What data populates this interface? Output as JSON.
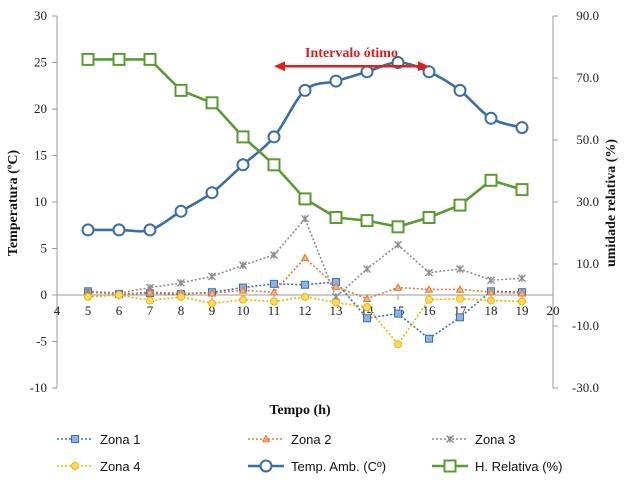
{
  "chart_data": {
    "type": "line",
    "xlabel": "Tempo (h)",
    "ylabel": "Temperatura (ºC)",
    "y2label": "umidade relativa (%)",
    "xlim": [
      4,
      20
    ],
    "xticks": [
      "4",
      "5",
      "6",
      "7",
      "8",
      "9",
      "10",
      "11",
      "12",
      "13",
      "14",
      "15",
      "16",
      "17",
      "18",
      "19",
      "20"
    ],
    "ylim": [
      -10,
      30
    ],
    "yticks": [
      "-10",
      "-5",
      "0",
      "5",
      "10",
      "15",
      "20",
      "25",
      "30"
    ],
    "y2lim": [
      -30,
      90
    ],
    "y2ticks": [
      "-30.0",
      "-10.0",
      "10.0",
      "30.0",
      "50.0",
      "70.0",
      "90.0"
    ],
    "grid": "none",
    "legend_position": "bottom",
    "annotation": {
      "text": "Intervalo ótimo",
      "x_start": 11,
      "x_end": 16,
      "y": 24.6,
      "color": "#e01f1f"
    },
    "x": [
      5,
      6,
      7,
      8,
      9,
      10,
      11,
      12,
      13,
      14,
      15,
      16,
      17,
      18,
      19
    ],
    "series": [
      {
        "name": "Zona 1",
        "axis": "left",
        "color": "#3b6db4",
        "fill": "#8eb4e3",
        "dash": "2,2",
        "marker": "square",
        "values": [
          0.4,
          0.1,
          0.2,
          0.1,
          0.3,
          0.8,
          1.2,
          1.1,
          1.4,
          -2.5,
          -2.0,
          -4.7,
          -2.4,
          0.4,
          0.3
        ]
      },
      {
        "name": "Zona 2",
        "axis": "left",
        "color": "#e07b39",
        "fill": "#f4b183",
        "dash": "2,2",
        "marker": "triangle",
        "values": [
          0.3,
          0.1,
          0.3,
          0.2,
          0.2,
          0.5,
          0.3,
          4.0,
          0.9,
          -0.4,
          0.8,
          0.6,
          0.6,
          0.3,
          0.2
        ]
      },
      {
        "name": "Zona 3",
        "axis": "left",
        "color": "#8c8c8c",
        "fill": "#a6a6a6",
        "dash": "2,2",
        "marker": "star",
        "values": [
          0.4,
          0.2,
          0.8,
          1.3,
          2.0,
          3.2,
          4.3,
          8.2,
          -0.2,
          2.8,
          5.4,
          2.4,
          2.8,
          1.6,
          1.8
        ]
      },
      {
        "name": "Zona 4",
        "axis": "left",
        "color": "#f0b400",
        "fill": "#ffd966",
        "dash": "2,2",
        "marker": "circle",
        "values": [
          -0.2,
          0.0,
          -0.6,
          -0.2,
          -0.9,
          -0.5,
          -0.7,
          -0.2,
          -0.8,
          -1.3,
          -5.3,
          -0.5,
          -0.4,
          -0.6,
          -0.7
        ]
      },
      {
        "name": "Temp. Amb.  (Cº)",
        "axis": "left",
        "color": "#3a6ea5",
        "fill": "#ffffff",
        "dash": "",
        "marker": "circle",
        "values": [
          7,
          7,
          7,
          9,
          11,
          14,
          17,
          22,
          23,
          24,
          25,
          24,
          22,
          19,
          18
        ]
      },
      {
        "name": "H. Relativa (%)",
        "axis": "right",
        "color": "#5a9a32",
        "fill": "#ffffff",
        "dash": "",
        "marker": "square",
        "values": [
          76,
          76,
          76,
          66,
          62,
          51,
          42,
          31,
          25,
          24,
          22,
          25,
          29,
          37,
          34
        ]
      }
    ]
  }
}
